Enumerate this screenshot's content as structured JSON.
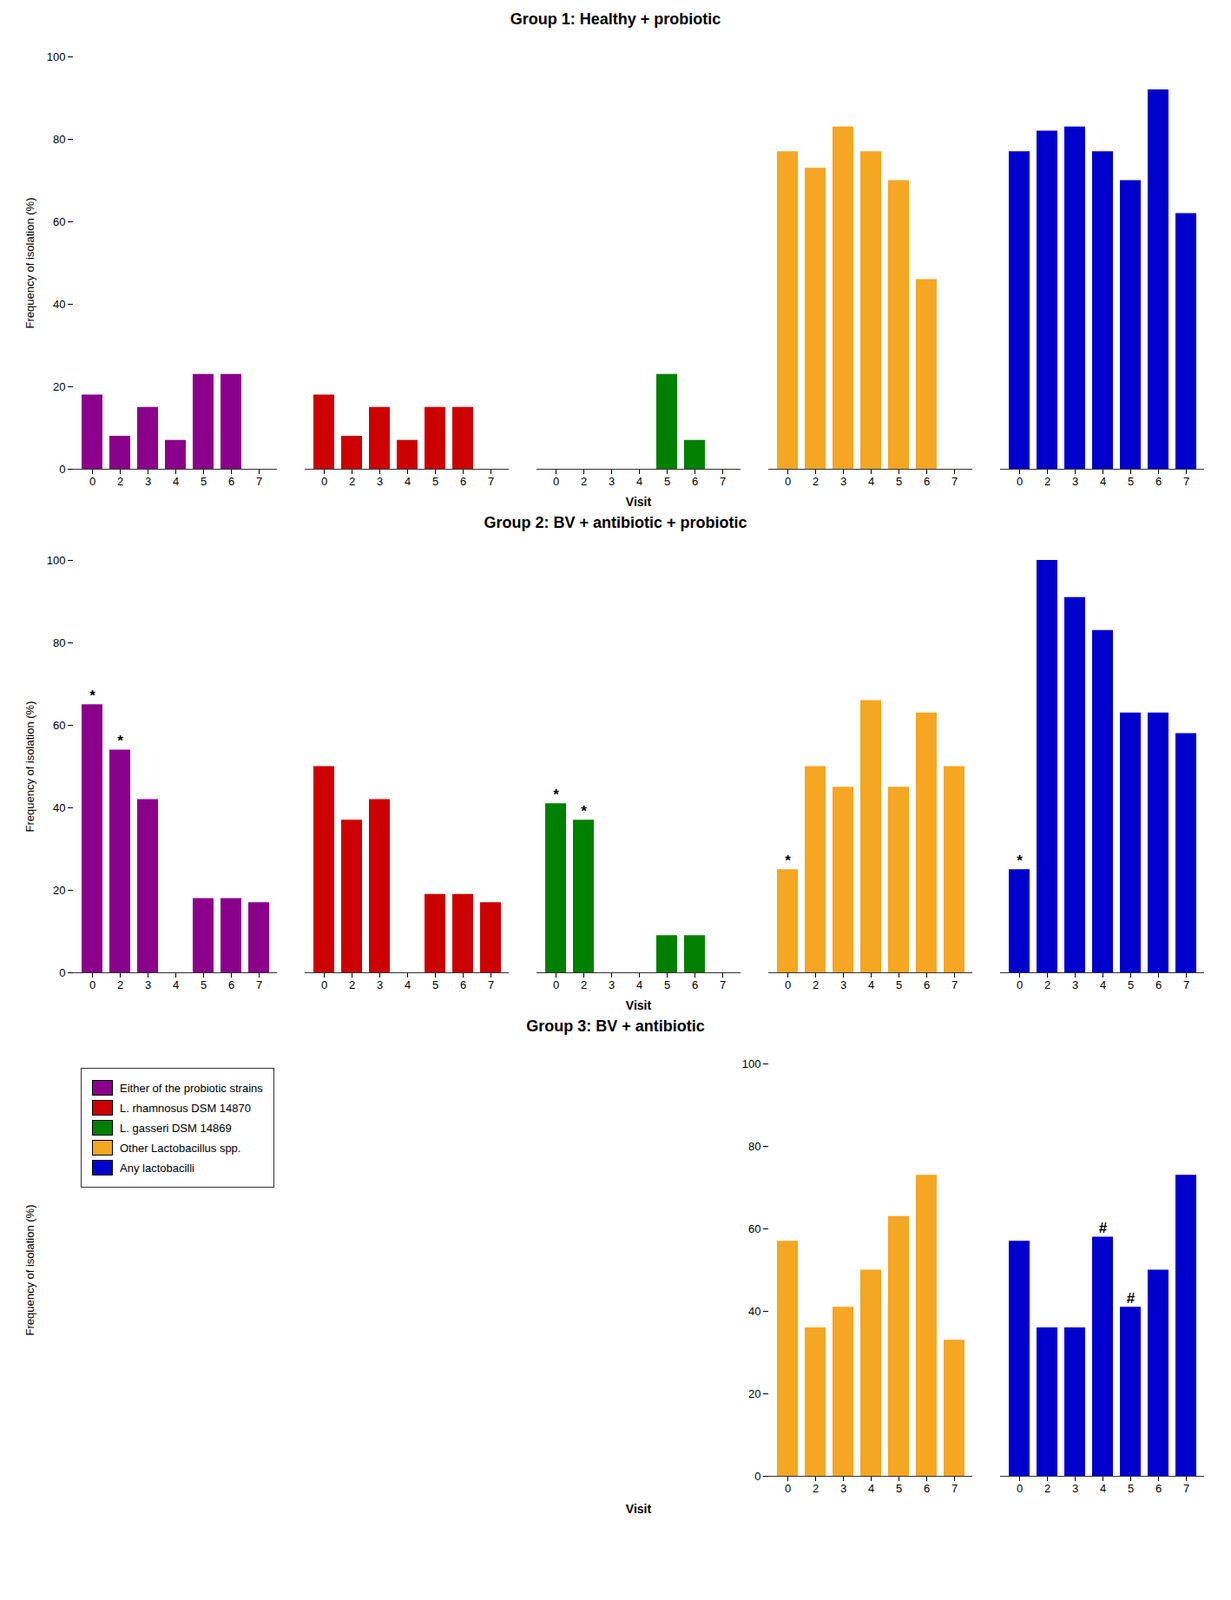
{
  "chart_data": [
    {
      "type": "bar",
      "title": "Group 1: Healthy + probiotic",
      "x_label": "Visit",
      "y_label": "Frequency of isolation (%)",
      "categories": [
        "0",
        "2",
        "3",
        "4",
        "5",
        "6",
        "7"
      ],
      "series": [
        {
          "color": "#8B008B",
          "values": [
            18,
            8,
            15,
            7,
            23,
            23,
            null
          ]
        },
        {
          "color": "#CC0000",
          "values": [
            18,
            8,
            15,
            7,
            15,
            15,
            null
          ]
        },
        {
          "color": "#008000",
          "values": [
            null,
            null,
            null,
            null,
            23,
            7,
            null
          ]
        },
        {
          "color": "#F5A623",
          "values": [
            77,
            73,
            83,
            77,
            70,
            46,
            null
          ]
        },
        {
          "color": "#0000CD",
          "values": [
            77,
            82,
            83,
            77,
            70,
            92,
            62
          ]
        }
      ],
      "ylim": [
        0,
        100
      ],
      "yticks": [
        0,
        20,
        40,
        60,
        80,
        100
      ],
      "grid": false
    },
    {
      "type": "bar",
      "title": "Group 2: BV + antibiotic + probiotic",
      "x_label": "Visit",
      "y_label": "Frequency of isolation (%)",
      "categories": [
        "0",
        "2",
        "3",
        "4",
        "5",
        "6",
        "7"
      ],
      "series": [
        {
          "color": "#8B008B",
          "values": [
            65,
            54,
            42,
            0,
            18,
            18,
            17
          ],
          "annotations": [
            {
              "x": "0",
              "text": "*"
            },
            {
              "x": "2",
              "text": "*"
            }
          ]
        },
        {
          "color": "#CC0000",
          "values": [
            50,
            37,
            42,
            0,
            19,
            19,
            17
          ]
        },
        {
          "color": "#008000",
          "values": [
            41,
            37,
            0,
            0,
            9,
            9,
            0
          ],
          "annotations": [
            {
              "x": "0",
              "text": "*"
            },
            {
              "x": "2",
              "text": "*"
            }
          ]
        },
        {
          "color": "#F5A623",
          "values": [
            25,
            50,
            45,
            66,
            45,
            63,
            50
          ],
          "annotations": [
            {
              "x": "0",
              "text": "*"
            }
          ]
        },
        {
          "color": "#0000CD",
          "values": [
            25,
            100,
            91,
            83,
            63,
            63,
            58
          ],
          "annotations": [
            {
              "x": "0",
              "text": "*"
            }
          ]
        }
      ],
      "ylim": [
        0,
        100
      ],
      "yticks": [
        0,
        20,
        40,
        60,
        80,
        100
      ],
      "grid": false
    },
    {
      "type": "bar",
      "title": "Group 3: BV + antibiotic",
      "x_label": "Visit",
      "y_label": "Frequency of isolation (%)",
      "categories": [
        "0",
        "2",
        "3",
        "4",
        "5",
        "6",
        "7"
      ],
      "series": [
        {
          "name": "Either of the probiotic strains",
          "color": "#8B008B",
          "values": [
            null,
            null,
            null,
            null,
            null,
            null,
            null
          ]
        },
        {
          "name": "L. rhamnosus DSM 14870",
          "color": "#CC0000",
          "values": [
            null,
            null,
            null,
            null,
            null,
            null,
            null
          ]
        },
        {
          "name": "L. gasseri DSM 14869",
          "color": "#008000",
          "values": [
            null,
            null,
            null,
            null,
            null,
            null,
            null
          ]
        },
        {
          "name": "Other Lactobacillus spp.",
          "color": "#F5A623",
          "values": [
            57,
            36,
            41,
            50,
            63,
            73,
            33
          ]
        },
        {
          "name": "Any lactobacilli",
          "color": "#0000CD",
          "values": [
            57,
            36,
            36,
            58,
            41,
            50,
            73
          ],
          "annotations": [
            {
              "x": "4",
              "text": "#"
            },
            {
              "x": "5",
              "text": "#"
            }
          ]
        }
      ],
      "ylim": [
        0,
        100
      ],
      "yticks": [
        0,
        20,
        40,
        60,
        80,
        100
      ],
      "grid": false,
      "legend": "upper left"
    }
  ]
}
